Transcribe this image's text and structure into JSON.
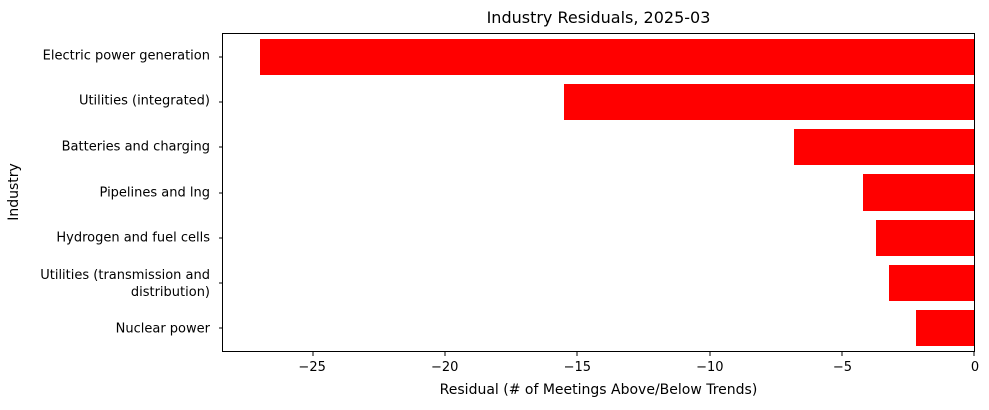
{
  "chart_data": {
    "type": "bar",
    "orientation": "horizontal",
    "title": "Industry Residuals, 2025-03",
    "xlabel": "Residual (# of Meetings Above/Below Trends)",
    "ylabel": "Industry",
    "categories": [
      "Electric power generation",
      "Utilities (integrated)",
      "Batteries and charging",
      "Pipelines and lng",
      "Hydrogen and fuel cells",
      "Utilities (transmission and distribution)",
      "Nuclear power"
    ],
    "values": [
      -27.0,
      -15.5,
      -6.8,
      -4.2,
      -3.7,
      -3.2,
      -2.2
    ],
    "bar_color": "#ff0000",
    "xlim": [
      -28.4,
      0
    ],
    "xticks": [
      -25,
      -20,
      -15,
      -10,
      -5,
      0
    ],
    "xticklabels": [
      "−25",
      "−20",
      "−15",
      "−10",
      "−5",
      "0"
    ],
    "grid": false,
    "legend": "none",
    "plot_border_color": "#000000",
    "background_color": "#ffffff"
  }
}
